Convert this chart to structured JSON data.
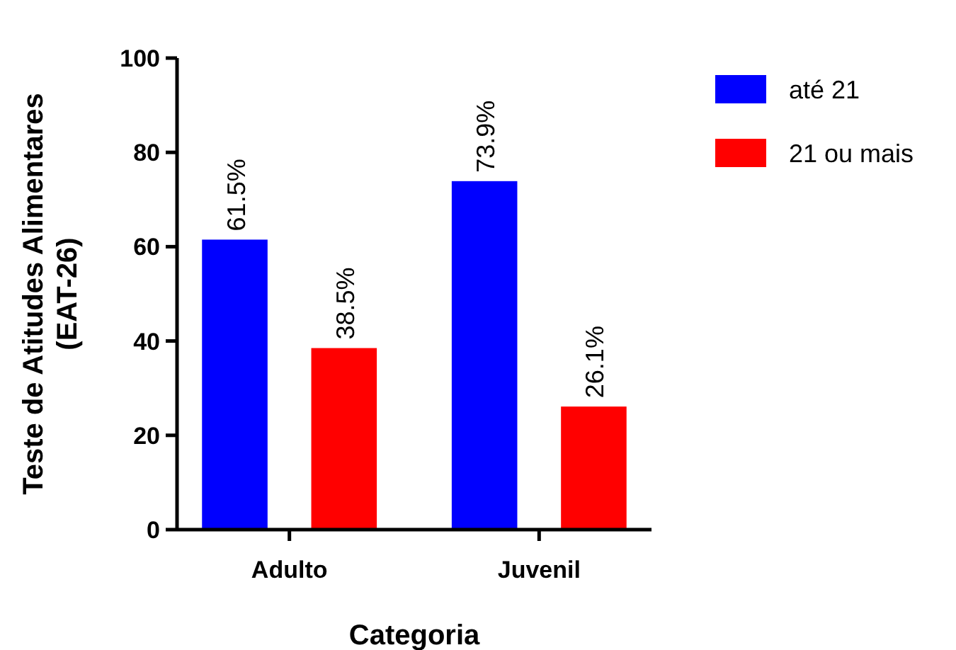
{
  "chart_data": {
    "type": "bar",
    "xlabel": "Categoria",
    "ylabel": "Teste de Atitudes Alimentares\n(EAT-26)",
    "categories": [
      "Adulto",
      "Juvenil"
    ],
    "series": [
      {
        "name": "até 21",
        "color": "#0000ff",
        "values": [
          61.5,
          73.9
        ],
        "value_labels": [
          "61.5%",
          "73.9%"
        ]
      },
      {
        "name": "21 ou mais",
        "color": "#ff0000",
        "values": [
          38.5,
          26.1
        ],
        "value_labels": [
          "38.5%",
          "26.1%"
        ]
      }
    ],
    "ylim": [
      0,
      100
    ],
    "yticks": [
      0,
      20,
      40,
      60,
      80,
      100
    ],
    "grid": false,
    "legend": "right"
  }
}
